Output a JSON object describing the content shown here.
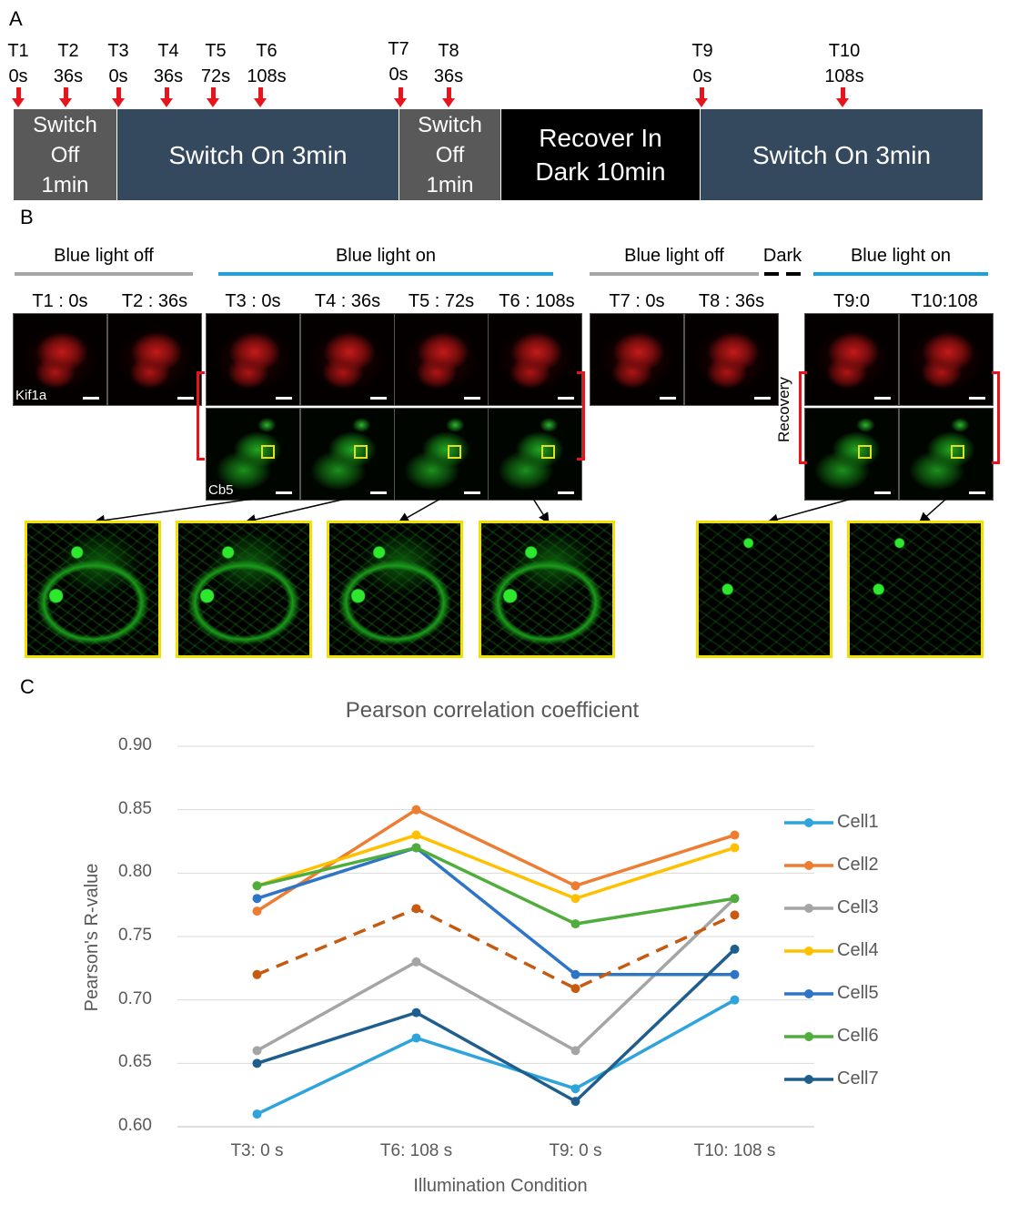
{
  "panels": {
    "a": "A",
    "b": "B",
    "c": "C"
  },
  "timeline": {
    "markers": [
      {
        "label": "T1",
        "time": "0s"
      },
      {
        "label": "T2",
        "time": "36s"
      },
      {
        "label": "T3",
        "time": "0s"
      },
      {
        "label": "T4",
        "time": "36s"
      },
      {
        "label": "T5",
        "time": "72s"
      },
      {
        "label": "T6",
        "time": "108s"
      },
      {
        "label": "T7",
        "time": "0s"
      },
      {
        "label": "T8",
        "time": "36s"
      },
      {
        "label": "T9",
        "time": "0s"
      },
      {
        "label": "T10",
        "time": "108s"
      }
    ],
    "segments": [
      {
        "label": "Switch\nOff\n1min",
        "kind": "off"
      },
      {
        "label": "Switch On 3min",
        "kind": "on"
      },
      {
        "label": "Switch\nOff\n1min",
        "kind": "off"
      },
      {
        "label": "Recover In\nDark 10min",
        "kind": "dark"
      },
      {
        "label": "Switch On 3min",
        "kind": "on"
      }
    ],
    "colors": {
      "arrow": "#e8141b",
      "off": "#595959",
      "on": "#34495e",
      "dark": "#000000"
    }
  },
  "micrographs": {
    "groups": [
      {
        "label": "Blue light off",
        "color": "#a6a6a6"
      },
      {
        "label": "Blue light on",
        "color": "#1ba1e2"
      },
      {
        "label": "Blue light off",
        "color": "#a6a6a6"
      },
      {
        "label": "Dark",
        "color": "#000000"
      },
      {
        "label": "Blue light on",
        "color": "#1ba1e2"
      }
    ],
    "timepoints": [
      "T1 : 0s",
      "T2 : 36s",
      "T3 : 0s",
      "T4 : 36s",
      "T5 : 72s",
      "T6 : 108s",
      "T7 : 0s",
      "T8 : 36s",
      "T9:0",
      "T10:108"
    ],
    "kif1a_label": "Kif1a",
    "cb5_label": "Cb5",
    "recovery_label": "Recovery"
  },
  "chart_data": {
    "type": "line",
    "title": "Pearson correlation coefficient",
    "xlabel": "Illumination Condition",
    "ylabel": "Pearson's R-value",
    "categories": [
      "T3: 0 s",
      "T6: 108 s",
      "T9: 0 s",
      "T10: 108 s"
    ],
    "ylim": [
      0.6,
      0.9
    ],
    "yticks": [
      "0.60",
      "0.65",
      "0.70",
      "0.75",
      "0.80",
      "0.85",
      "0.90"
    ],
    "grid": true,
    "legend_position": "right",
    "series": [
      {
        "name": "Cell1",
        "values": [
          0.61,
          0.67,
          0.63,
          0.7
        ],
        "color": "#2ea3dc",
        "dash": false
      },
      {
        "name": "Cell2",
        "values": [
          0.77,
          0.85,
          0.79,
          0.83
        ],
        "color": "#ed7d31",
        "dash": false
      },
      {
        "name": "Cell3",
        "values": [
          0.66,
          0.73,
          0.66,
          0.78
        ],
        "color": "#a5a5a5",
        "dash": false
      },
      {
        "name": "Cell4",
        "values": [
          0.79,
          0.83,
          0.78,
          0.82
        ],
        "color": "#ffc000",
        "dash": false
      },
      {
        "name": "Cell5",
        "values": [
          0.78,
          0.82,
          0.72,
          0.72
        ],
        "color": "#2e75c6",
        "dash": false
      },
      {
        "name": "Cell6",
        "values": [
          0.79,
          0.82,
          0.76,
          0.78
        ],
        "color": "#4ead3b",
        "dash": false
      },
      {
        "name": "Cell7",
        "values": [
          0.65,
          0.69,
          0.62,
          0.74
        ],
        "color": "#1f5e8c",
        "dash": false
      },
      {
        "values": [
          0.72,
          0.772,
          0.709,
          0.767
        ],
        "color": "#c55a11",
        "dash": true
      }
    ]
  }
}
